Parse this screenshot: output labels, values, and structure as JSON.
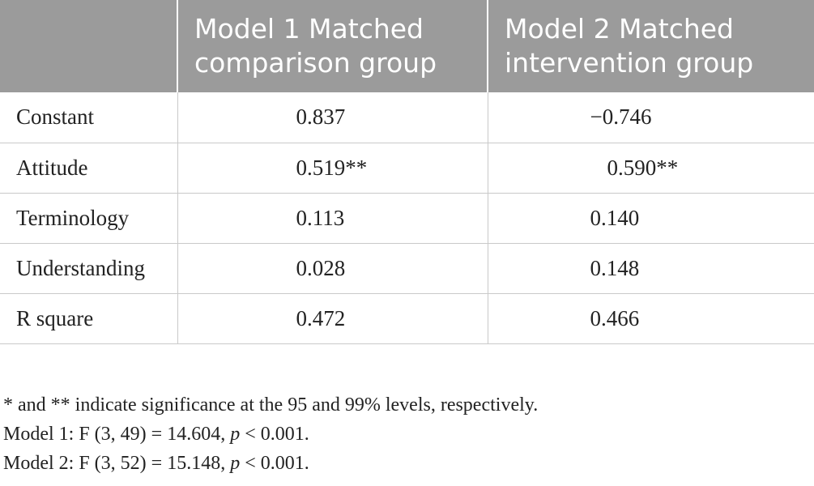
{
  "table": {
    "headers": [
      "",
      "Model 1 Matched comparison group",
      "Model 2 Matched intervention group"
    ],
    "header_lines": [
      [
        "",
        ""
      ],
      [
        "Model 1 Matched",
        "comparison group"
      ],
      [
        "Model 2 Matched",
        "intervention group"
      ]
    ],
    "rows": [
      {
        "label": "Constant",
        "model1": "0.837",
        "model2": "−0.746"
      },
      {
        "label": "Attitude",
        "model1": "0.519**",
        "model2": "0.590**"
      },
      {
        "label": "Terminology",
        "model1": "0.113",
        "model2": "0.140"
      },
      {
        "label": "Understanding",
        "model1": "0.028",
        "model2": "0.148"
      },
      {
        "label": "R square",
        "model1": "0.472",
        "model2": "0.466"
      }
    ]
  },
  "notes": {
    "significance": "* and ** indicate significance at the 95 and 99% levels, respectively.",
    "model1_prefix": "Model 1: F (3, 49) = 14.604, ",
    "model1_p": "p",
    "model1_suffix": " < 0.001.",
    "model2_prefix": "Model 2: F (3, 52) = 15.148, ",
    "model2_p": "p",
    "model2_suffix": " < 0.001."
  },
  "colors": {
    "header_bg": "#9b9b9b",
    "header_text": "#ffffff",
    "grid_line": "#c9c9c9",
    "body_text": "#222222"
  }
}
